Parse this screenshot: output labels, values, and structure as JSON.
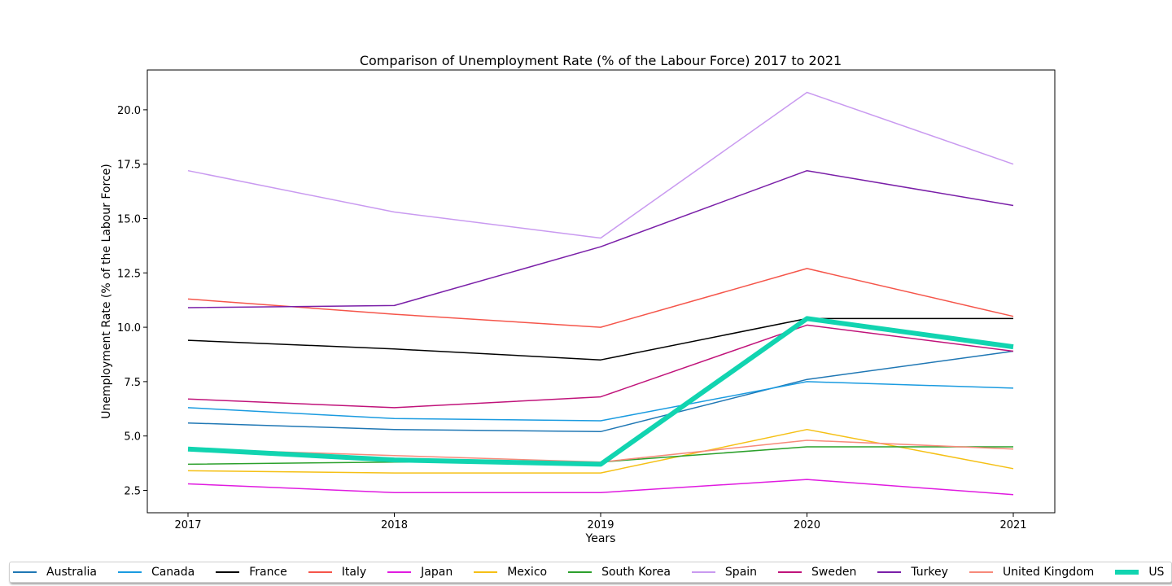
{
  "chart_data": {
    "type": "line",
    "title": "Comparison of Unemployment Rate (% of the Labour Force) 2017 to 2021",
    "xlabel": "Years",
    "ylabel": "Unemployment Rate (% of the Labour Force)",
    "x": [
      "2017",
      "2018",
      "2019",
      "2020",
      "2021"
    ],
    "ylim": [
      1.47,
      21.83
    ],
    "yticks": [
      "2.5",
      "5.0",
      "7.5",
      "10.0",
      "12.5",
      "15.0",
      "17.5",
      "20.0"
    ],
    "ytick_values": [
      2.5,
      5.0,
      7.5,
      10.0,
      12.5,
      15.0,
      17.5,
      20.0
    ],
    "grid": false,
    "legend_position": "bottom",
    "series": [
      {
        "name": "Australia",
        "color": "#1f77b4",
        "width": 1.5,
        "values": [
          5.6,
          5.3,
          5.2,
          7.6,
          8.9
        ]
      },
      {
        "name": "Canada",
        "color": "#1a9be0",
        "width": 1.5,
        "values": [
          6.3,
          5.8,
          5.7,
          7.5,
          7.2
        ]
      },
      {
        "name": "France",
        "color": "#000000",
        "width": 1.5,
        "values": [
          9.4,
          9.0,
          8.5,
          10.4,
          10.4
        ]
      },
      {
        "name": "Italy",
        "color": "#f5554a",
        "width": 1.5,
        "values": [
          11.3,
          10.6,
          10.0,
          12.7,
          10.5
        ]
      },
      {
        "name": "Japan",
        "color": "#e01be0",
        "width": 1.5,
        "values": [
          2.8,
          2.4,
          2.4,
          3.0,
          2.3
        ]
      },
      {
        "name": "Mexico",
        "color": "#f5c015",
        "width": 1.5,
        "values": [
          3.4,
          3.3,
          3.3,
          5.3,
          3.5
        ]
      },
      {
        "name": "South Korea",
        "color": "#2ca02c",
        "width": 1.5,
        "values": [
          3.7,
          3.8,
          3.8,
          4.5,
          4.5
        ]
      },
      {
        "name": "Spain",
        "color": "#c99af0",
        "width": 1.5,
        "values": [
          17.2,
          15.3,
          14.1,
          20.8,
          17.5
        ]
      },
      {
        "name": "Sweden",
        "color": "#c0137a",
        "width": 1.5,
        "values": [
          6.7,
          6.3,
          6.8,
          10.1,
          8.9
        ]
      },
      {
        "name": "Turkey",
        "color": "#7a1fa8",
        "width": 1.5,
        "values": [
          10.9,
          11.0,
          13.7,
          17.2,
          15.6
        ]
      },
      {
        "name": "United Kingdom",
        "color": "#f78a7a",
        "width": 1.5,
        "values": [
          4.4,
          4.1,
          3.8,
          4.8,
          4.4
        ]
      },
      {
        "name": "US",
        "color": "#11d4b0",
        "width": 6,
        "values": [
          4.4,
          3.9,
          3.7,
          10.4,
          9.1
        ]
      }
    ]
  }
}
